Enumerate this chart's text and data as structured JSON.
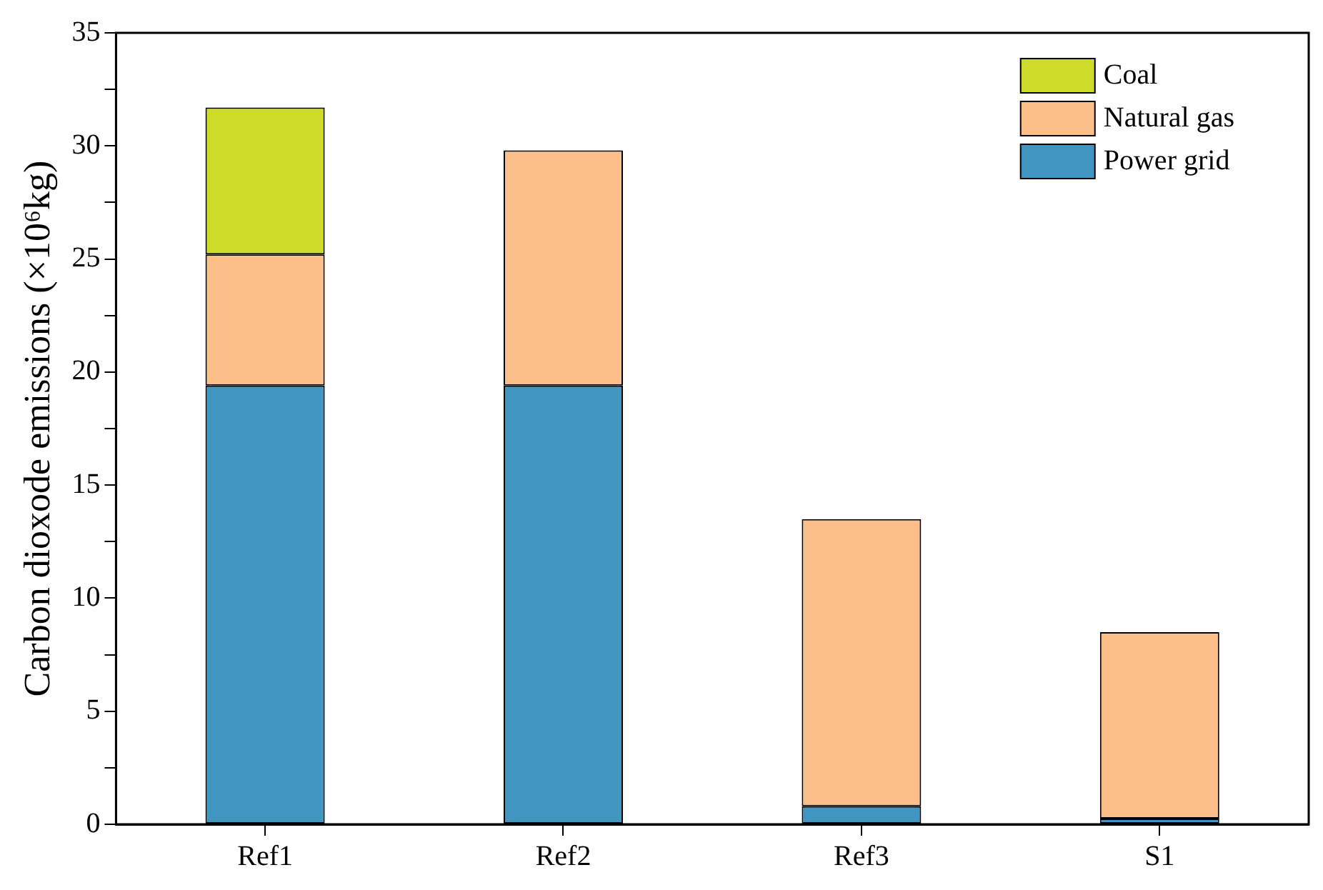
{
  "chart_data": {
    "type": "bar",
    "stacked": true,
    "ylabel": "Carbon dioxode emissions (×10⁶kg)",
    "categories": [
      "Ref1",
      "Ref2",
      "Ref3",
      "S1"
    ],
    "series": [
      {
        "name": "Power grid",
        "color": "#4196c1",
        "values": [
          19.4,
          19.4,
          0.8,
          0.25
        ]
      },
      {
        "name": "Natural gas",
        "color": "#fdbf8a",
        "values": [
          5.8,
          10.4,
          12.7,
          8.25
        ]
      },
      {
        "name": "Coal",
        "color": "#cddc29",
        "values": [
          6.5,
          null,
          null,
          null
        ]
      }
    ],
    "ylim": [
      0,
      35
    ],
    "yticks": [
      0,
      {
        "value": 2.5,
        "label": null
      },
      5,
      {
        "value": 7.5,
        "label": null
      },
      10,
      {
        "value": 12.5,
        "label": null
      },
      15,
      {
        "value": 17.5,
        "label": null
      },
      20,
      {
        "value": 22.5,
        "label": null
      },
      25,
      {
        "value": 27.5,
        "label": null
      },
      30,
      {
        "value": 32.5,
        "label": null
      },
      35
    ],
    "grid": false,
    "legend": "top right"
  }
}
